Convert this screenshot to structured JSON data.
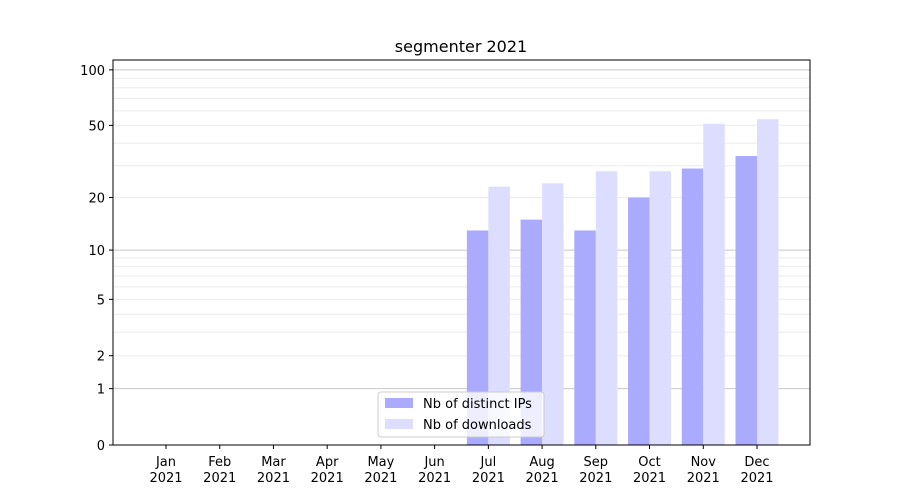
{
  "chart_data": {
    "type": "bar",
    "title": "segmenter 2021",
    "xlabel": "",
    "ylabel": "",
    "y_scale": "log10(1+y)",
    "ylim": [
      0,
      113
    ],
    "yticks": [
      0,
      1,
      2,
      5,
      10,
      20,
      50,
      100
    ],
    "categories": [
      "Jan\n2021",
      "Feb\n2021",
      "Mar\n2021",
      "Apr\n2021",
      "May\n2021",
      "Jun\n2021",
      "Jul\n2021",
      "Aug\n2021",
      "Sep\n2021",
      "Oct\n2021",
      "Nov\n2021",
      "Dec\n2021"
    ],
    "series": [
      {
        "name": "Nb of distinct IPs",
        "color": "#aaaaff",
        "values": [
          0,
          0,
          0,
          0,
          0,
          0,
          13,
          15,
          13,
          20,
          29,
          34
        ]
      },
      {
        "name": "Nb of downloads",
        "color": "#ddddff",
        "values": [
          0,
          0,
          0,
          0,
          0,
          0,
          23,
          24,
          28,
          28,
          51,
          54
        ]
      }
    ],
    "grid": true,
    "legend_position": "lower-center"
  }
}
